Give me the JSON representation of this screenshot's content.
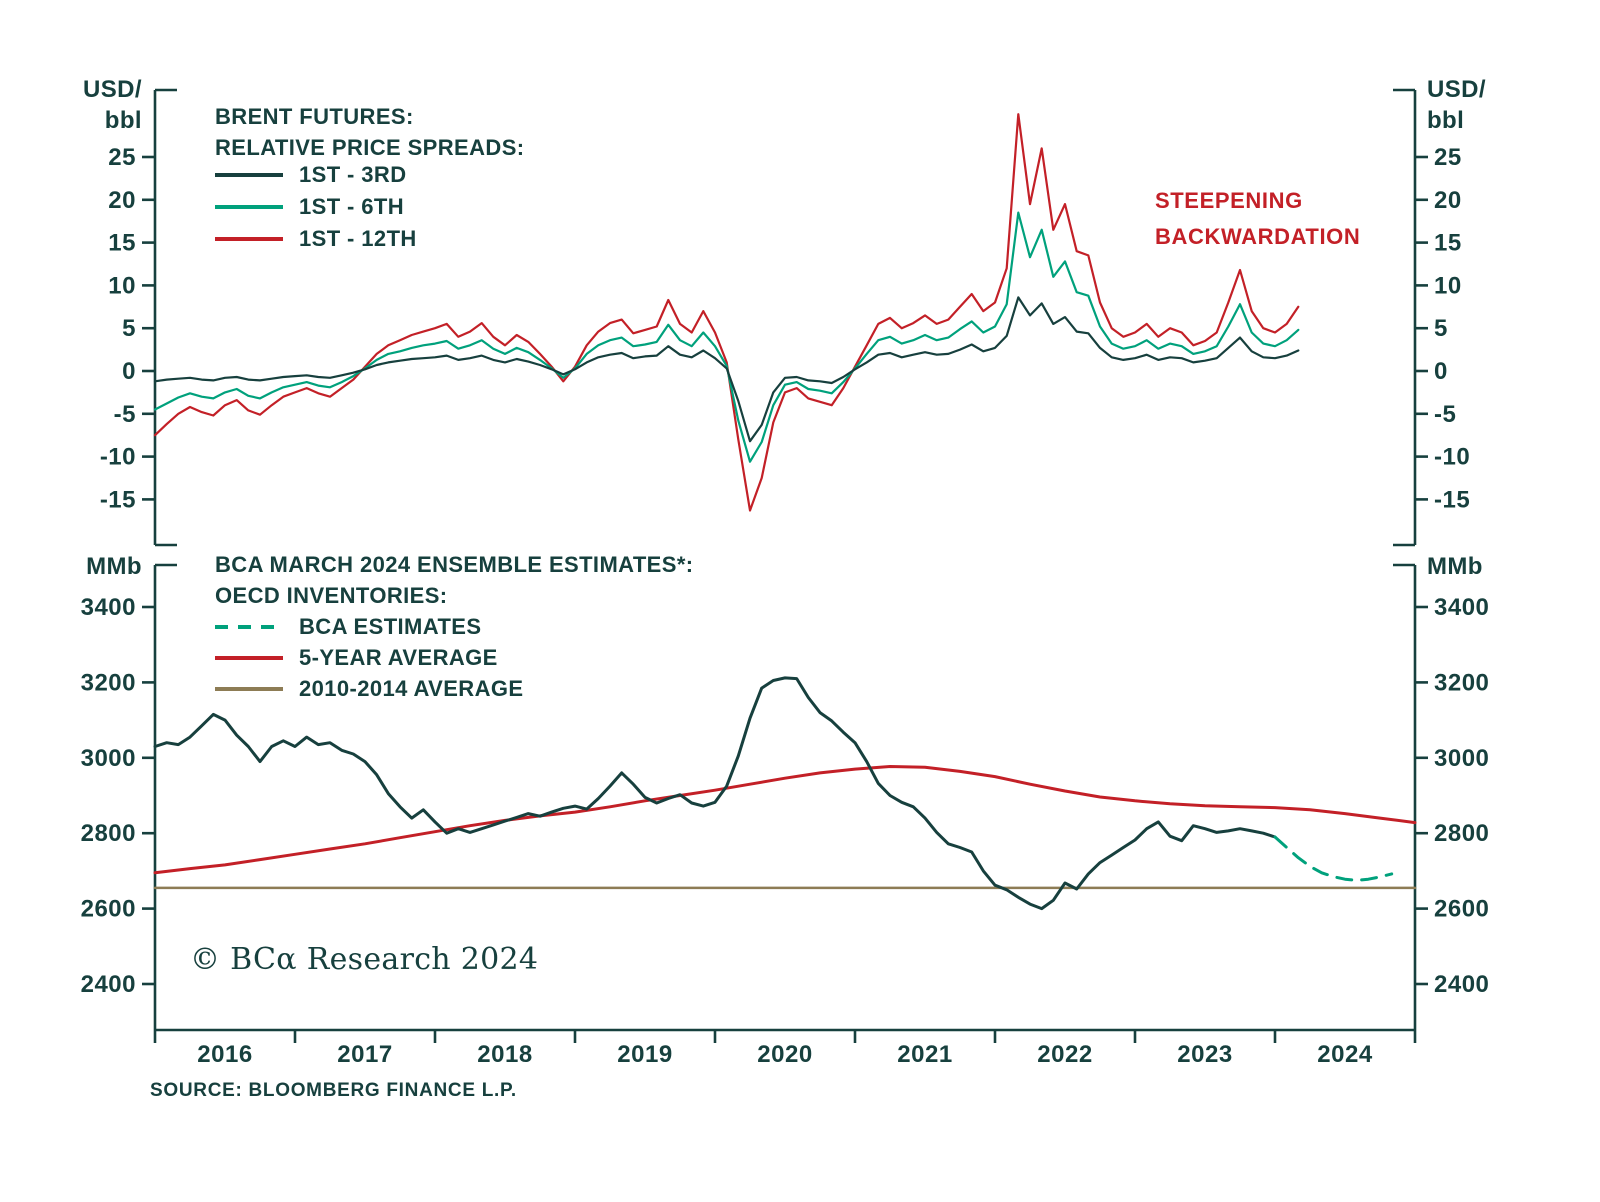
{
  "meta": {
    "watermark": "© BCα Research 2024",
    "source": "SOURCE: BLOOMBERG FINANCE L.P."
  },
  "colors": {
    "dark": "#17403e",
    "green": "#00a17c",
    "red": "#c32027",
    "brown": "#8d7c55",
    "axis": "#17403e"
  },
  "top_panel": {
    "unit_line1": "USD/",
    "unit_line2": "bbl",
    "legend": {
      "title1": "BRENT FUTURES:",
      "title2": "RELATIVE PRICE SPREADS:",
      "items": [
        {
          "label": "1ST - 3RD"
        },
        {
          "label": "1ST - 6TH"
        },
        {
          "label": "1ST - 12TH"
        }
      ]
    },
    "annotation_line1": "STEEPENING",
    "annotation_line2": "BACKWARDATION"
  },
  "bottom_panel": {
    "unit": "MMb",
    "legend": {
      "title1": "BCA MARCH 2024 ENSEMBLE ESTIMATES*:",
      "title2": "OECD INVENTORIES:",
      "items": [
        {
          "label": "BCA ESTIMATES",
          "dashed": true
        },
        {
          "label": "5-YEAR AVERAGE"
        },
        {
          "label": "2010-2014 AVERAGE"
        }
      ]
    }
  },
  "chart_data": [
    {
      "type": "line",
      "panel": "top",
      "title": "BRENT FUTURES: RELATIVE PRICE SPREADS",
      "ylabel": "USD/bbl",
      "xlim": [
        2016,
        2025
      ],
      "ylim": [
        -20,
        32
      ],
      "yticks": [
        25,
        20,
        15,
        10,
        5,
        0,
        -5,
        -10,
        -15
      ],
      "annotation": "STEEPENING BACKWARDATION",
      "series": [
        {
          "name": "1ST - 3RD",
          "color_ref": "dark",
          "x_start": 2016,
          "x_step_years": 0.083333,
          "width": 2.2,
          "values": [
            -1.2,
            -1.0,
            -0.9,
            -0.8,
            -1.0,
            -1.1,
            -0.8,
            -0.7,
            -1.0,
            -1.1,
            -0.9,
            -0.7,
            -0.6,
            -0.5,
            -0.7,
            -0.8,
            -0.5,
            -0.2,
            0.2,
            0.7,
            1.0,
            1.2,
            1.4,
            1.5,
            1.6,
            1.8,
            1.3,
            1.5,
            1.8,
            1.3,
            1.0,
            1.4,
            1.1,
            0.7,
            0.2,
            -0.4,
            0.2,
            1.0,
            1.6,
            1.9,
            2.1,
            1.5,
            1.7,
            1.8,
            2.9,
            1.9,
            1.6,
            2.4,
            1.5,
            0.3,
            -3.5,
            -8.2,
            -6.3,
            -2.5,
            -0.8,
            -0.7,
            -1.1,
            -1.2,
            -1.4,
            -0.7,
            0.2,
            1.0,
            1.9,
            2.1,
            1.6,
            1.9,
            2.2,
            1.9,
            2.0,
            2.5,
            3.1,
            2.3,
            2.7,
            4.1,
            8.6,
            6.5,
            7.9,
            5.5,
            6.3,
            4.6,
            4.4,
            2.7,
            1.6,
            1.3,
            1.5,
            1.9,
            1.3,
            1.6,
            1.5,
            1.0,
            1.2,
            1.5,
            2.7,
            3.9,
            2.3,
            1.6,
            1.5,
            1.8,
            2.4
          ]
        },
        {
          "name": "1ST - 6TH",
          "color_ref": "green",
          "x_start": 2016,
          "x_step_years": 0.083333,
          "width": 2.2,
          "values": [
            -4.5,
            -3.8,
            -3.1,
            -2.6,
            -3.0,
            -3.2,
            -2.5,
            -2.1,
            -2.9,
            -3.2,
            -2.5,
            -1.9,
            -1.6,
            -1.3,
            -1.7,
            -1.9,
            -1.3,
            -0.6,
            0.3,
            1.3,
            2.0,
            2.3,
            2.7,
            3.0,
            3.2,
            3.5,
            2.6,
            3.0,
            3.6,
            2.6,
            2.0,
            2.7,
            2.2,
            1.3,
            0.3,
            -0.8,
            0.3,
            2.0,
            3.0,
            3.6,
            3.9,
            2.9,
            3.1,
            3.4,
            5.4,
            3.6,
            2.9,
            4.5,
            2.9,
            0.6,
            -5.8,
            -10.6,
            -8.3,
            -4.0,
            -1.6,
            -1.3,
            -2.1,
            -2.3,
            -2.6,
            -1.3,
            0.3,
            2.0,
            3.6,
            4.0,
            3.2,
            3.6,
            4.2,
            3.6,
            3.9,
            4.9,
            5.8,
            4.5,
            5.2,
            7.8,
            18.5,
            13.3,
            16.5,
            11.0,
            12.8,
            9.2,
            8.8,
            5.2,
            3.2,
            2.6,
            2.9,
            3.6,
            2.6,
            3.2,
            2.9,
            2.0,
            2.3,
            2.9,
            5.2,
            7.8,
            4.5,
            3.2,
            2.9,
            3.6,
            4.8
          ]
        },
        {
          "name": "1ST - 12TH",
          "color_ref": "red",
          "x_start": 2016,
          "x_step_years": 0.083333,
          "width": 2.2,
          "values": [
            -7.5,
            -6.2,
            -5.0,
            -4.2,
            -4.8,
            -5.2,
            -4.0,
            -3.4,
            -4.6,
            -5.1,
            -4.0,
            -3.0,
            -2.5,
            -2.0,
            -2.6,
            -3.0,
            -2.0,
            -1.0,
            0.5,
            2.0,
            3.0,
            3.6,
            4.2,
            4.6,
            5.0,
            5.5,
            4.0,
            4.6,
            5.6,
            4.0,
            3.0,
            4.2,
            3.4,
            2.0,
            0.5,
            -1.2,
            0.5,
            3.0,
            4.6,
            5.6,
            6.0,
            4.4,
            4.8,
            5.2,
            8.3,
            5.5,
            4.5,
            7.0,
            4.5,
            1.0,
            -8.0,
            -16.3,
            -12.5,
            -6.0,
            -2.5,
            -2.0,
            -3.2,
            -3.6,
            -4.0,
            -2.0,
            0.5,
            3.0,
            5.5,
            6.2,
            5.0,
            5.6,
            6.5,
            5.5,
            6.0,
            7.5,
            9.0,
            7.0,
            8.0,
            12.0,
            30.0,
            19.5,
            26.0,
            16.5,
            19.5,
            14.0,
            13.5,
            8.0,
            5.0,
            4.0,
            4.5,
            5.5,
            4.0,
            5.0,
            4.5,
            3.0,
            3.5,
            4.5,
            8.0,
            11.8,
            7.0,
            5.0,
            4.5,
            5.5,
            7.5
          ]
        }
      ]
    },
    {
      "type": "line",
      "panel": "bottom",
      "title": "BCA MARCH 2024 ENSEMBLE ESTIMATES*: OECD INVENTORIES",
      "ylabel": "MMb",
      "xlim": [
        2016,
        2025
      ],
      "ylim": [
        2280,
        3510
      ],
      "yticks": [
        3400,
        3200,
        3000,
        2800,
        2600,
        2400
      ],
      "xticks": [
        2016,
        2017,
        2018,
        2019,
        2020,
        2021,
        2022,
        2023,
        2024
      ],
      "series": [
        {
          "name": "BCA ESTIMATES",
          "color_ref": "green",
          "dash": true,
          "x_start": 2024.0,
          "x_step_years": 0.083333,
          "width": 3,
          "values": [
            2790,
            2762,
            2735,
            2712,
            2695,
            2685,
            2678,
            2675,
            2678,
            2684,
            2692
          ]
        },
        {
          "name": "OECD INVENTORIES",
          "color_ref": "dark",
          "x_start": 2016,
          "x_step_years": 0.083333,
          "width": 3,
          "values": [
            3030,
            3040,
            3035,
            3055,
            3085,
            3115,
            3100,
            3060,
            3030,
            2990,
            3030,
            3045,
            3030,
            3055,
            3035,
            3040,
            3020,
            3010,
            2990,
            2955,
            2905,
            2870,
            2840,
            2862,
            2830,
            2800,
            2812,
            2802,
            2812,
            2822,
            2832,
            2842,
            2852,
            2845,
            2856,
            2866,
            2872,
            2864,
            2892,
            2925,
            2960,
            2930,
            2895,
            2880,
            2892,
            2902,
            2880,
            2872,
            2882,
            2925,
            3005,
            3105,
            3185,
            3205,
            3212,
            3210,
            3160,
            3120,
            3098,
            3068,
            3040,
            2990,
            2932,
            2900,
            2882,
            2870,
            2840,
            2802,
            2772,
            2762,
            2750,
            2700,
            2662,
            2650,
            2630,
            2612,
            2600,
            2622,
            2668,
            2652,
            2692,
            2722,
            2742,
            2762,
            2782,
            2812,
            2830,
            2792,
            2780,
            2820,
            2812,
            2802,
            2806,
            2812,
            2806,
            2800,
            2790
          ]
        },
        {
          "name": "5-YEAR AVERAGE",
          "color_ref": "red",
          "x_start": 2016,
          "x_step_years": 0.25,
          "width": 3,
          "values": [
            2695,
            2706,
            2716,
            2730,
            2744,
            2758,
            2772,
            2788,
            2804,
            2820,
            2834,
            2846,
            2856,
            2870,
            2886,
            2900,
            2914,
            2930,
            2946,
            2960,
            2970,
            2977,
            2975,
            2964,
            2950,
            2930,
            2912,
            2896,
            2886,
            2878,
            2873,
            2870,
            2868,
            2862,
            2852,
            2840,
            2828
          ]
        },
        {
          "name": "2010-2014 AVERAGE",
          "color_ref": "brown",
          "x": [
            2016,
            2025
          ],
          "width": 2.5,
          "values": [
            2655,
            2655
          ]
        }
      ]
    }
  ]
}
